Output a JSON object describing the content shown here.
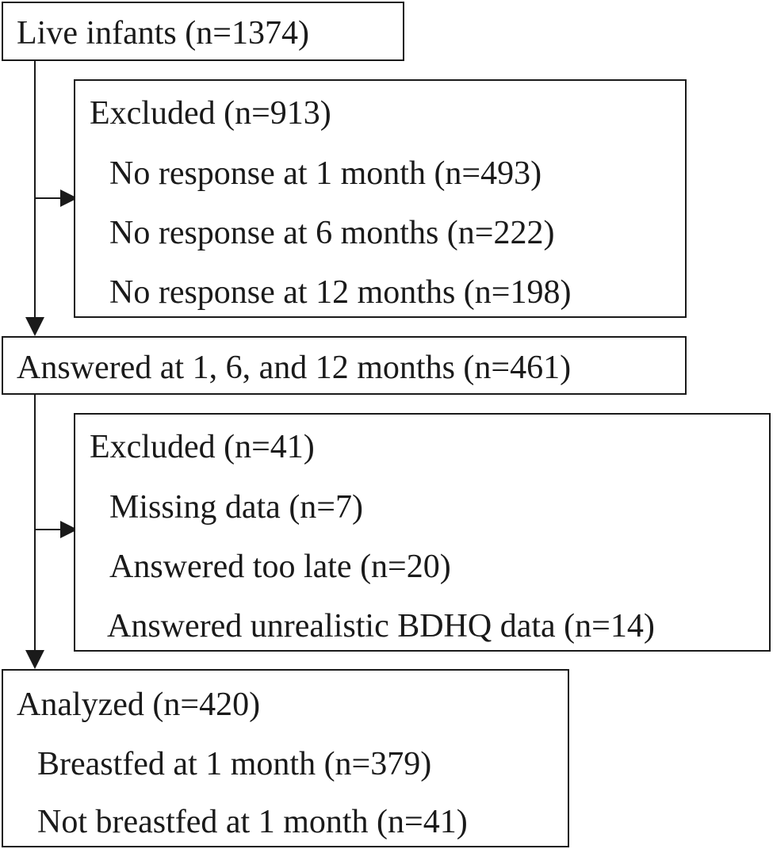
{
  "live_infants": {
    "label": "Live infants (n=1374)"
  },
  "excluded_1": {
    "title": "Excluded (n=913)",
    "items": [
      "No response at 1 month (n=493)",
      "No response at 6 months (n=222)",
      "No response at 12 months (n=198)"
    ]
  },
  "answered": {
    "label": "Answered at 1, 6, and 12 months (n=461)"
  },
  "excluded_2": {
    "title": "Excluded (n=41)",
    "items": [
      "Missing data (n=7)",
      "Answered too late (n=20)",
      "Answered unrealistic BDHQ data (n=14)"
    ]
  },
  "analyzed": {
    "title": "Analyzed (n=420)",
    "items": [
      "Breastfed at 1 month (n=379)",
      "Not breastfed at 1 month (n=41)"
    ]
  }
}
